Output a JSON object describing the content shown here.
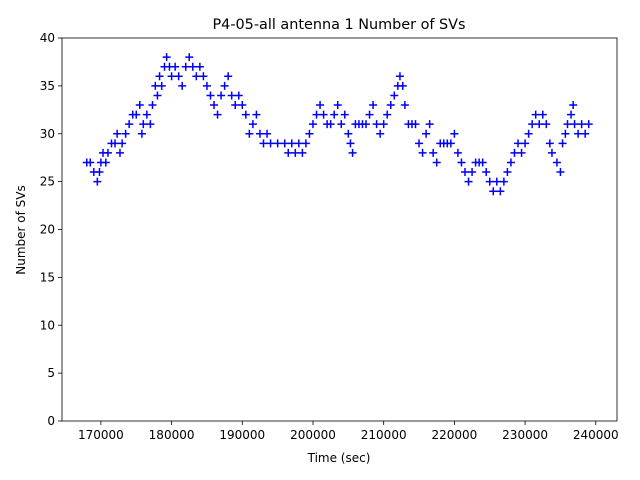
{
  "chart_data": {
    "type": "scatter",
    "title": "P4-05-all antenna 1 Number of SVs",
    "xlabel": "Time (sec)",
    "ylabel": "Number of SVs",
    "color": "#0000ff",
    "marker": "+",
    "grid": false,
    "xlim": [
      164500,
      243000
    ],
    "ylim": [
      0,
      40
    ],
    "xticks": [
      170000,
      180000,
      190000,
      200000,
      210000,
      220000,
      230000,
      240000
    ],
    "yticks": [
      0,
      5,
      10,
      15,
      20,
      25,
      30,
      35,
      40
    ],
    "x": [
      168000,
      168500,
      169000,
      169500,
      169800,
      170000,
      170300,
      170700,
      171000,
      171500,
      172000,
      172300,
      172700,
      173000,
      173500,
      174000,
      174500,
      175000,
      175500,
      175800,
      176000,
      176500,
      177000,
      177300,
      177700,
      178000,
      178300,
      178600,
      179000,
      179300,
      179700,
      180000,
      180500,
      181000,
      181500,
      182000,
      182500,
      183000,
      183500,
      184000,
      184500,
      185000,
      185500,
      186000,
      186500,
      187000,
      187500,
      188000,
      188500,
      189000,
      189500,
      190000,
      190500,
      191000,
      191500,
      192000,
      192500,
      193000,
      193500,
      194000,
      195000,
      196000,
      196500,
      197000,
      197500,
      198000,
      198500,
      199000,
      199500,
      200000,
      200500,
      201000,
      201500,
      202000,
      202500,
      203000,
      203500,
      204000,
      204500,
      205000,
      205300,
      205600,
      206000,
      206500,
      207000,
      207500,
      208000,
      208500,
      209000,
      209500,
      210000,
      210500,
      211000,
      211500,
      212000,
      212300,
      212700,
      213000,
      213500,
      214000,
      214500,
      215000,
      215500,
      216000,
      216500,
      217000,
      217500,
      218000,
      218500,
      219000,
      219500,
      220000,
      220500,
      221000,
      221500,
      222000,
      222500,
      223000,
      223500,
      224000,
      224500,
      225000,
      225500,
      226000,
      226500,
      227000,
      227500,
      228000,
      228500,
      229000,
      229500,
      230000,
      230500,
      231000,
      231500,
      232000,
      232500,
      233000,
      233500,
      233800,
      234500,
      235000,
      235300,
      235700,
      236000,
      236500,
      236800,
      237000,
      237500,
      238000,
      238500,
      239000
    ],
    "y": [
      27,
      27,
      26,
      25,
      26,
      27,
      28,
      27,
      28,
      29,
      29,
      30,
      28,
      29,
      30,
      31,
      32,
      32,
      33,
      30,
      31,
      32,
      31,
      33,
      35,
      34,
      36,
      35,
      37,
      38,
      37,
      36,
      37,
      36,
      35,
      37,
      38,
      37,
      36,
      37,
      36,
      35,
      34,
      33,
      32,
      34,
      35,
      36,
      34,
      33,
      34,
      33,
      32,
      30,
      31,
      32,
      30,
      29,
      30,
      29,
      29,
      29,
      28,
      29,
      28,
      29,
      28,
      29,
      30,
      31,
      32,
      33,
      32,
      31,
      31,
      32,
      33,
      31,
      32,
      30,
      29,
      28,
      31,
      31,
      31,
      31,
      32,
      33,
      31,
      30,
      31,
      32,
      33,
      34,
      35,
      36,
      35,
      33,
      31,
      31,
      31,
      29,
      28,
      30,
      31,
      28,
      27,
      29,
      29,
      29,
      29,
      30,
      28,
      27,
      26,
      25,
      26,
      27,
      27,
      27,
      26,
      25,
      24,
      25,
      24,
      25,
      26,
      27,
      28,
      29,
      28,
      29,
      30,
      31,
      32,
      31,
      32,
      31,
      29,
      28,
      27,
      26,
      29,
      30,
      31,
      32,
      33,
      31,
      30,
      31,
      30,
      31
    ]
  }
}
